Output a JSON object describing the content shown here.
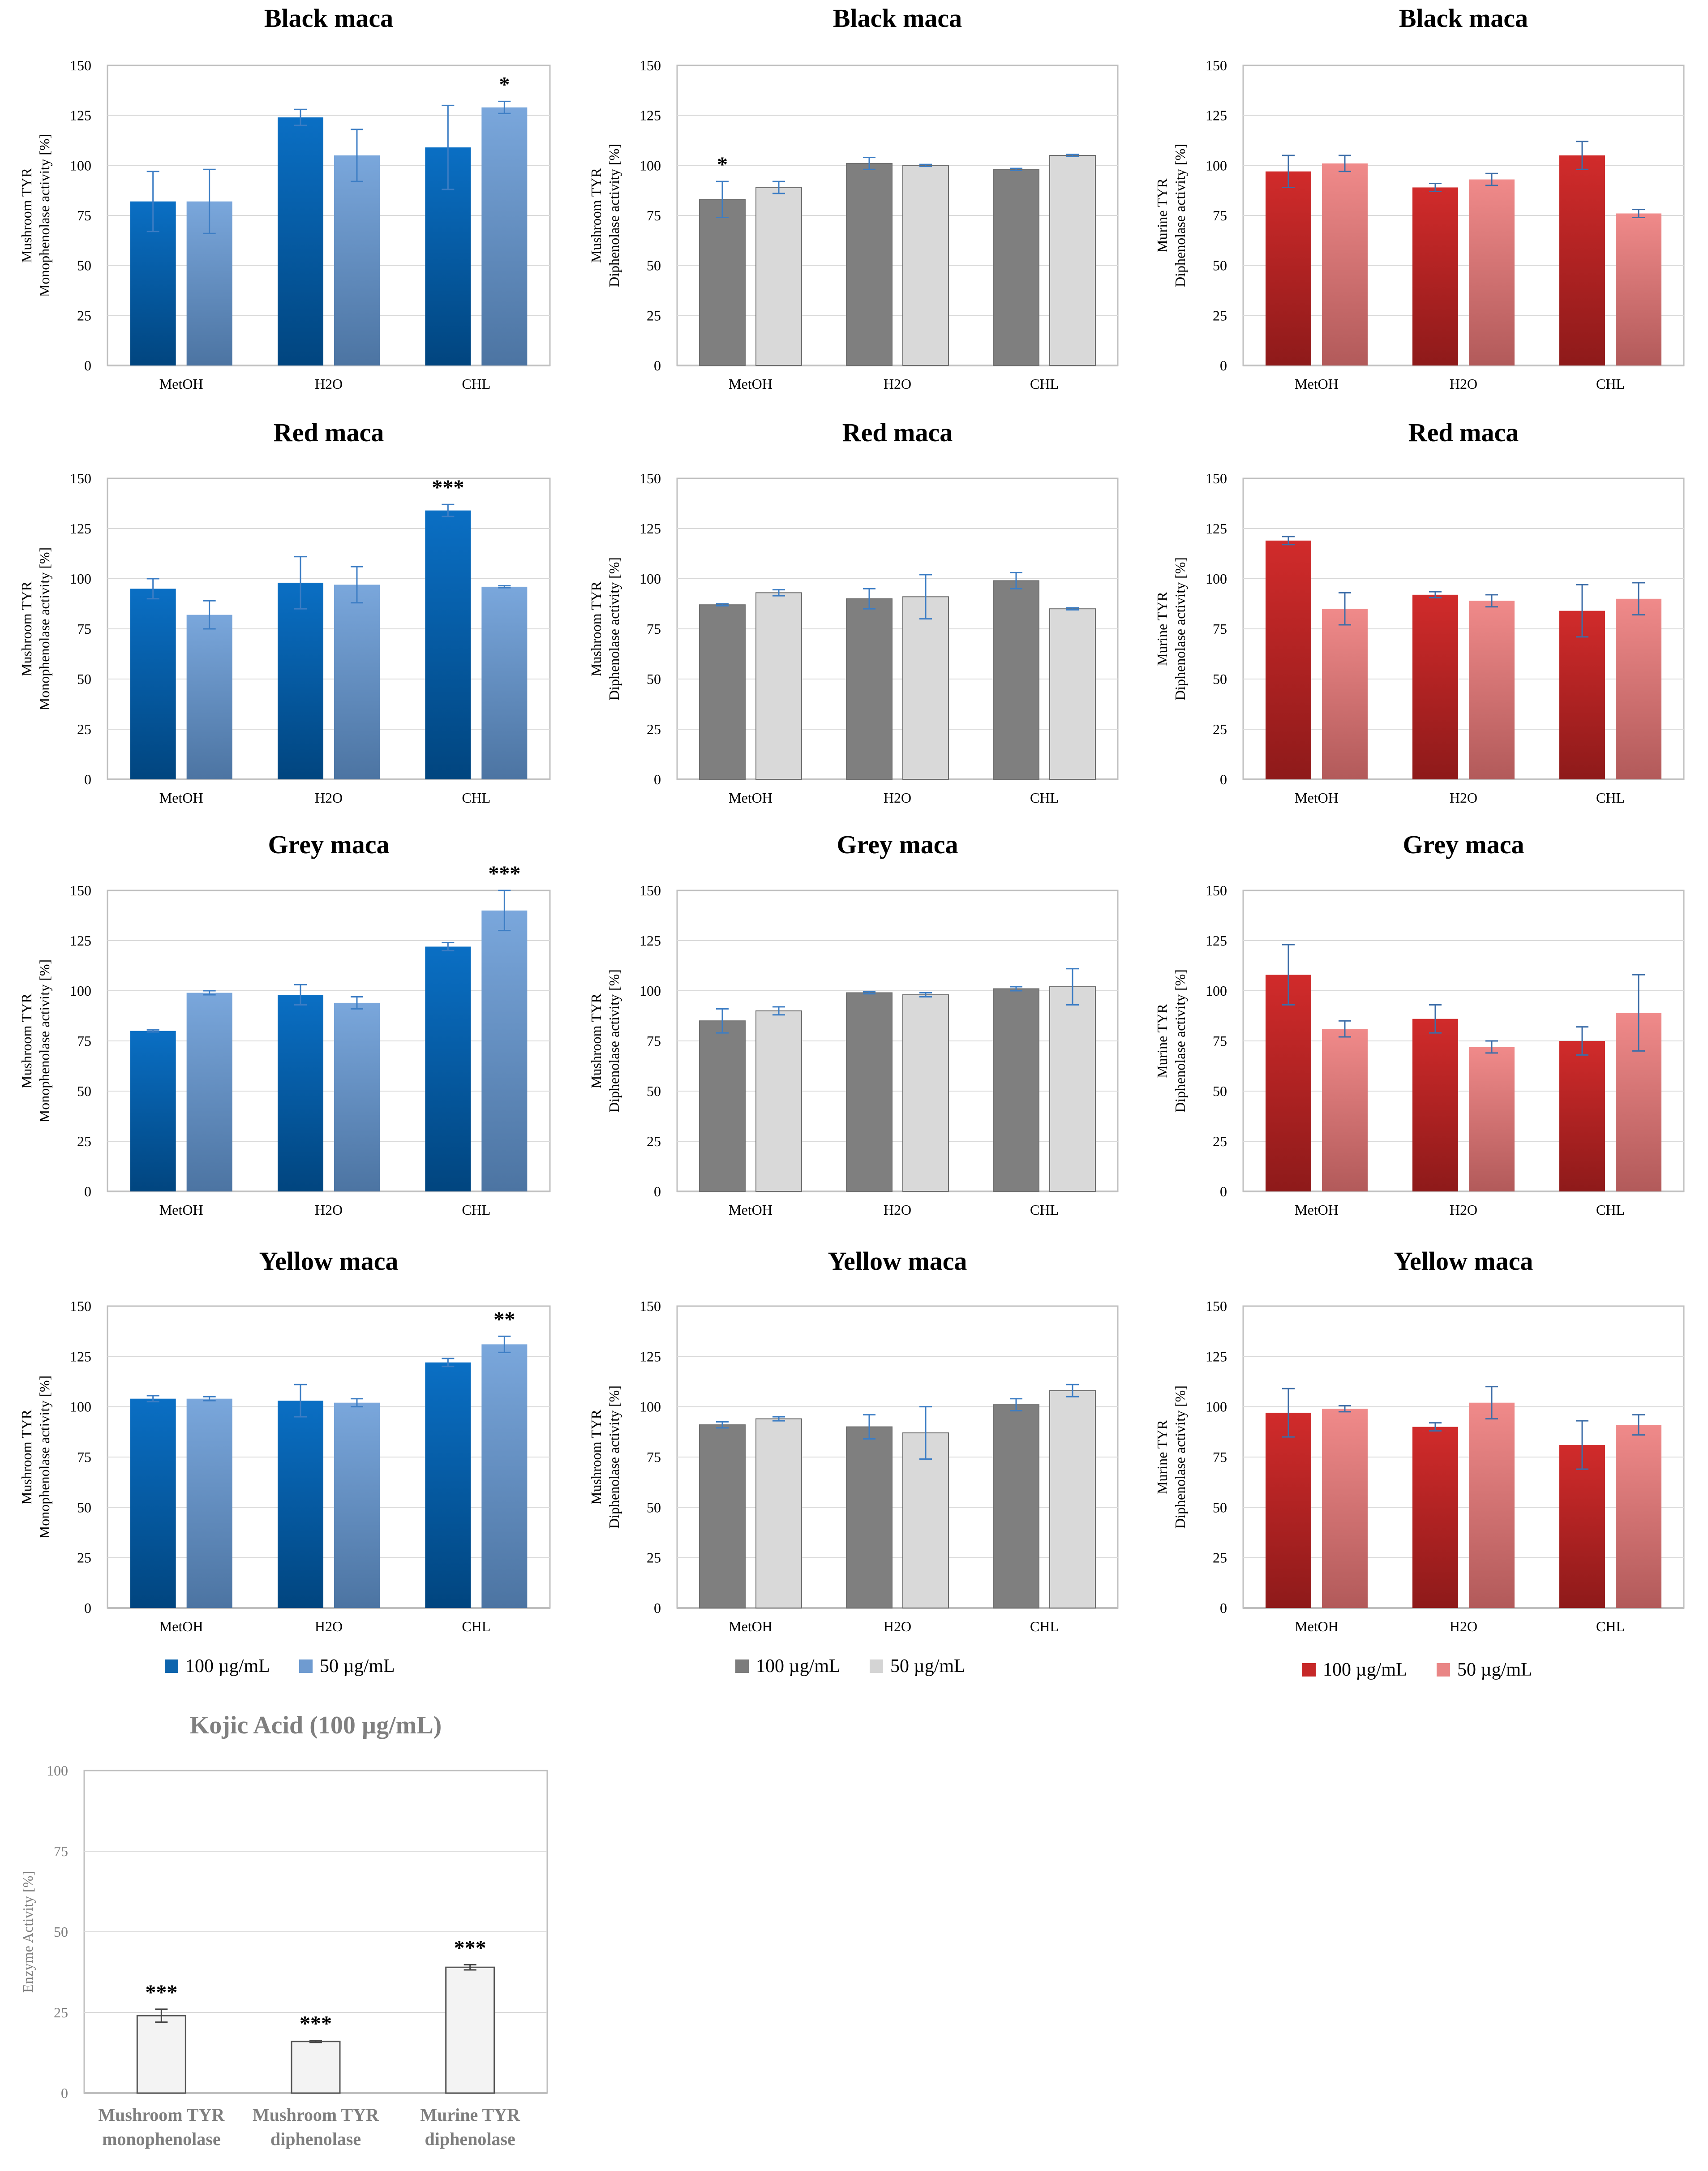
{
  "figure": {
    "legends": [
      {
        "items": [
          {
            "label": "100 µg/mL",
            "color": "#0d64ad"
          },
          {
            "label": "50 µg/mL",
            "color": "#6f9bd0"
          }
        ]
      },
      {
        "items": [
          {
            "label": "100 µg/mL",
            "color": "#7c7c7c"
          },
          {
            "label": "50 µg/mL",
            "color": "#d4d4d4"
          }
        ]
      },
      {
        "items": [
          {
            "label": "100 µg/mL",
            "color": "#c62828"
          },
          {
            "label": "50 µg/mL",
            "color": "#e98585"
          }
        ]
      }
    ]
  },
  "chart_data": [
    {
      "type": "bar",
      "title": "Black maca",
      "ylabel": [
        "Mushroom TYR",
        "Monophenolase activity [%]"
      ],
      "categories": [
        "MetOH",
        "H2O",
        "CHL"
      ],
      "ylim": [
        0,
        150
      ],
      "yticks": [
        0,
        25,
        50,
        75,
        100,
        125,
        150
      ],
      "series": [
        {
          "name": "100 µg/mL",
          "values": [
            82,
            124,
            109
          ],
          "errors": [
            15,
            4,
            21
          ],
          "marks": [
            "",
            "",
            ""
          ]
        },
        {
          "name": "50 µg/mL",
          "values": [
            82,
            105,
            129
          ],
          "errors": [
            16,
            13,
            3
          ],
          "marks": [
            "",
            "",
            "*"
          ]
        }
      ],
      "palette": "blue",
      "grid": true,
      "legend": "none"
    },
    {
      "type": "bar",
      "title": "Black maca",
      "ylabel": [
        "Mushroom TYR",
        "Diphenolase activity [%]"
      ],
      "categories": [
        "MetOH",
        "H2O",
        "CHL"
      ],
      "ylim": [
        0,
        150
      ],
      "yticks": [
        0,
        25,
        50,
        75,
        100,
        125,
        150
      ],
      "series": [
        {
          "name": "100 µg/mL",
          "values": [
            83,
            101,
            98
          ],
          "errors": [
            9,
            3,
            0.5
          ],
          "marks": [
            "*",
            "",
            ""
          ]
        },
        {
          "name": "50 µg/mL",
          "values": [
            89,
            100,
            105
          ],
          "errors": [
            3,
            0.5,
            0.5
          ],
          "marks": [
            "",
            "",
            ""
          ]
        }
      ],
      "palette": "grey",
      "grid": true,
      "legend": "none"
    },
    {
      "type": "bar",
      "title": "Black maca",
      "ylabel": [
        "Murine TYR",
        "Diphenolase activity [%]"
      ],
      "categories": [
        "MetOH",
        "H2O",
        "CHL"
      ],
      "ylim": [
        0,
        150
      ],
      "yticks": [
        0,
        25,
        50,
        75,
        100,
        125,
        150
      ],
      "series": [
        {
          "name": "100 µg/mL",
          "values": [
            97,
            89,
            105
          ],
          "errors": [
            8,
            2,
            7
          ],
          "marks": [
            "",
            "",
            ""
          ]
        },
        {
          "name": "50 µg/mL",
          "values": [
            101,
            93,
            76
          ],
          "errors": [
            4,
            3,
            2
          ],
          "marks": [
            "",
            "",
            ""
          ]
        }
      ],
      "palette": "red",
      "grid": true,
      "legend": "none"
    },
    {
      "type": "bar",
      "title": "Red maca",
      "ylabel": [
        "Mushroom TYR",
        "Monophenolase activity [%]"
      ],
      "categories": [
        "MetOH",
        "H2O",
        "CHL"
      ],
      "ylim": [
        0,
        150
      ],
      "yticks": [
        0,
        25,
        50,
        75,
        100,
        125,
        150
      ],
      "series": [
        {
          "name": "100 µg/mL",
          "values": [
            95,
            98,
            134
          ],
          "errors": [
            5,
            13,
            3
          ],
          "marks": [
            "",
            "",
            "***"
          ]
        },
        {
          "name": "50 µg/mL",
          "values": [
            82,
            97,
            96
          ],
          "errors": [
            7,
            9,
            0.5
          ],
          "marks": [
            "",
            "",
            ""
          ]
        }
      ],
      "palette": "blue",
      "grid": true,
      "legend": "none"
    },
    {
      "type": "bar",
      "title": "Red maca",
      "ylabel": [
        "Mushroom TYR",
        "Diphenolase activity [%]"
      ],
      "categories": [
        "MetOH",
        "H2O",
        "CHL"
      ],
      "ylim": [
        0,
        150
      ],
      "yticks": [
        0,
        25,
        50,
        75,
        100,
        125,
        150
      ],
      "series": [
        {
          "name": "100 µg/mL",
          "values": [
            87,
            90,
            99
          ],
          "errors": [
            0.5,
            5,
            4
          ],
          "marks": [
            "",
            "",
            ""
          ]
        },
        {
          "name": "50 µg/mL",
          "values": [
            93,
            91,
            85
          ],
          "errors": [
            1.5,
            11,
            0.5
          ],
          "marks": [
            "",
            "",
            ""
          ]
        }
      ],
      "palette": "grey",
      "grid": true,
      "legend": "none"
    },
    {
      "type": "bar",
      "title": "Red maca",
      "ylabel": [
        "Murine TYR",
        "Diphenolase activity [%]"
      ],
      "categories": [
        "MetOH",
        "H2O",
        "CHL"
      ],
      "ylim": [
        0,
        150
      ],
      "yticks": [
        0,
        25,
        50,
        75,
        100,
        125,
        150
      ],
      "series": [
        {
          "name": "100 µg/mL",
          "values": [
            119,
            92,
            84
          ],
          "errors": [
            2,
            1.5,
            13
          ],
          "marks": [
            "",
            "",
            ""
          ]
        },
        {
          "name": "50 µg/mL",
          "values": [
            85,
            89,
            90
          ],
          "errors": [
            8,
            3,
            8
          ],
          "marks": [
            "",
            "",
            ""
          ]
        }
      ],
      "palette": "red",
      "grid": true,
      "legend": "none"
    },
    {
      "type": "bar",
      "title": "Grey maca",
      "ylabel": [
        "Mushroom TYR",
        "Monophenolase activity [%]"
      ],
      "categories": [
        "MetOH",
        "H2O",
        "CHL"
      ],
      "ylim": [
        0,
        150
      ],
      "yticks": [
        0,
        25,
        50,
        75,
        100,
        125,
        150
      ],
      "series": [
        {
          "name": "100 µg/mL",
          "values": [
            80,
            98,
            122
          ],
          "errors": [
            0.5,
            5,
            2
          ],
          "marks": [
            "",
            "",
            ""
          ]
        },
        {
          "name": "50 µg/mL",
          "values": [
            99,
            94,
            140
          ],
          "errors": [
            1,
            3,
            10
          ],
          "marks": [
            "",
            "",
            "***"
          ]
        }
      ],
      "palette": "blue",
      "grid": true,
      "legend": "none"
    },
    {
      "type": "bar",
      "title": "Grey maca",
      "ylabel": [
        "Mushroom TYR",
        "Diphenolase activity [%]"
      ],
      "categories": [
        "MetOH",
        "H2O",
        "CHL"
      ],
      "ylim": [
        0,
        150
      ],
      "yticks": [
        0,
        25,
        50,
        75,
        100,
        125,
        150
      ],
      "series": [
        {
          "name": "100 µg/mL",
          "values": [
            85,
            99,
            101
          ],
          "errors": [
            6,
            0.5,
            1
          ],
          "marks": [
            "",
            "",
            ""
          ]
        },
        {
          "name": "50 µg/mL",
          "values": [
            90,
            98,
            102
          ],
          "errors": [
            2,
            1,
            9
          ],
          "marks": [
            "",
            "",
            ""
          ]
        }
      ],
      "palette": "grey",
      "grid": true,
      "legend": "none"
    },
    {
      "type": "bar",
      "title": "Grey maca",
      "ylabel": [
        "Murine TYR",
        "Diphenolase activity [%]"
      ],
      "categories": [
        "MetOH",
        "H2O",
        "CHL"
      ],
      "ylim": [
        0,
        150
      ],
      "yticks": [
        0,
        25,
        50,
        75,
        100,
        125,
        150
      ],
      "series": [
        {
          "name": "100 µg/mL",
          "values": [
            108,
            86,
            75
          ],
          "errors": [
            15,
            7,
            7
          ],
          "marks": [
            "",
            "",
            ""
          ]
        },
        {
          "name": "50 µg/mL",
          "values": [
            81,
            72,
            89
          ],
          "errors": [
            4,
            3,
            19
          ],
          "marks": [
            "",
            "",
            ""
          ]
        }
      ],
      "palette": "red",
      "grid": true,
      "legend": "none"
    },
    {
      "type": "bar",
      "title": "Yellow maca",
      "ylabel": [
        "Mushroom TYR",
        "Monophenolase activity [%]"
      ],
      "categories": [
        "MetOH",
        "H2O",
        "CHL"
      ],
      "ylim": [
        0,
        150
      ],
      "yticks": [
        0,
        25,
        50,
        75,
        100,
        125,
        150
      ],
      "series": [
        {
          "name": "100 µg/mL",
          "values": [
            104,
            103,
            122
          ],
          "errors": [
            1.5,
            8,
            2
          ],
          "marks": [
            "",
            "",
            ""
          ]
        },
        {
          "name": "50 µg/mL",
          "values": [
            104,
            102,
            131
          ],
          "errors": [
            1,
            2,
            4
          ],
          "marks": [
            "",
            "",
            "**"
          ]
        }
      ],
      "palette": "blue",
      "grid": true,
      "legend": "bottom"
    },
    {
      "type": "bar",
      "title": "Yellow maca",
      "ylabel": [
        "Mushroom TYR",
        "Diphenolase activity [%]"
      ],
      "categories": [
        "MetOH",
        "H2O",
        "CHL"
      ],
      "ylim": [
        0,
        150
      ],
      "yticks": [
        0,
        25,
        50,
        75,
        100,
        125,
        150
      ],
      "series": [
        {
          "name": "100 µg/mL",
          "values": [
            91,
            90,
            101
          ],
          "errors": [
            1.5,
            6,
            3
          ],
          "marks": [
            "",
            "",
            ""
          ]
        },
        {
          "name": "50 µg/mL",
          "values": [
            94,
            87,
            108
          ],
          "errors": [
            1,
            13,
            3
          ],
          "marks": [
            "",
            "",
            ""
          ]
        }
      ],
      "palette": "grey",
      "grid": true,
      "legend": "bottom"
    },
    {
      "type": "bar",
      "title": "Yellow maca",
      "ylabel": [
        "Murine TYR",
        "Diphenolase activity [%]"
      ],
      "categories": [
        "MetOH",
        "H2O",
        "CHL"
      ],
      "ylim": [
        0,
        150
      ],
      "yticks": [
        0,
        25,
        50,
        75,
        100,
        125,
        150
      ],
      "series": [
        {
          "name": "100 µg/mL",
          "values": [
            97,
            90,
            81
          ],
          "errors": [
            12,
            2,
            12
          ],
          "marks": [
            "",
            "",
            ""
          ]
        },
        {
          "name": "50 µg/mL",
          "values": [
            99,
            102,
            91
          ],
          "errors": [
            1.5,
            8,
            5
          ],
          "marks": [
            "",
            "",
            ""
          ]
        }
      ],
      "palette": "red",
      "grid": true,
      "legend": "bottom"
    },
    {
      "type": "bar",
      "title": "Kojic Acid (100 µg/mL)",
      "ylabel": [
        "Enzyme Activity [%]"
      ],
      "categories": [
        [
          "Mushroom TYR",
          "monophenolase"
        ],
        [
          "Mushroom TYR",
          "diphenolase"
        ],
        [
          "Murine TYR",
          "diphenolase"
        ]
      ],
      "ylim": [
        0,
        100
      ],
      "yticks": [
        0,
        25,
        50,
        75,
        100
      ],
      "series": [
        {
          "values": [
            24,
            16,
            39
          ],
          "errors": [
            2,
            0.3,
            0.8
          ],
          "marks": [
            "***",
            "***",
            "***"
          ]
        }
      ],
      "palette": "white",
      "grid": true,
      "legend": "none"
    }
  ]
}
